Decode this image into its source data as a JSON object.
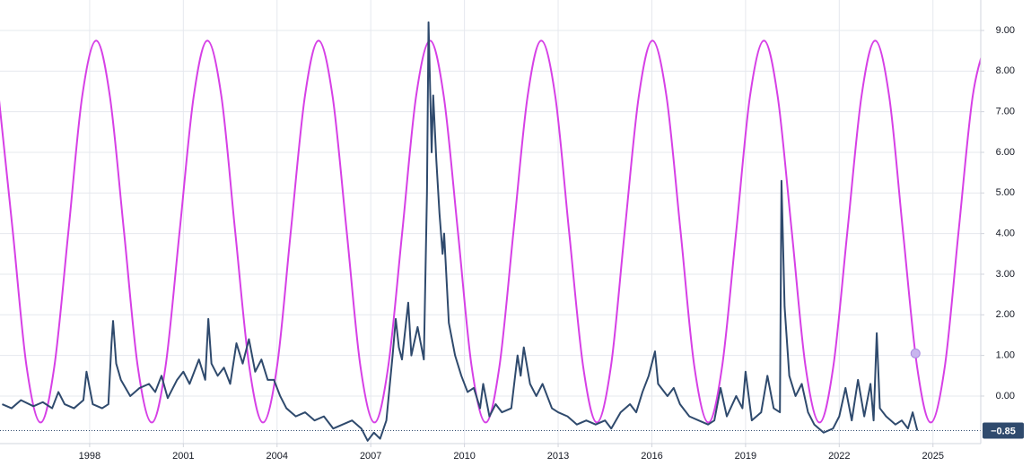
{
  "chart_data": {
    "type": "line",
    "xlim": [
      1995.13,
      2026.53
    ],
    "ylim": [
      -1.17,
      9.75
    ],
    "xticks": [
      1998,
      2001,
      2004,
      2007,
      2010,
      2013,
      2016,
      2019,
      2022,
      2025
    ],
    "yticks": [
      {
        "value": 0,
        "label": "0.00"
      },
      {
        "value": 1,
        "label": "1.00"
      },
      {
        "value": 2,
        "label": "2.00"
      },
      {
        "value": 3,
        "label": "3.00"
      },
      {
        "value": 4,
        "label": "4.00"
      },
      {
        "value": 5,
        "label": "5.00"
      },
      {
        "value": 6,
        "label": "6.00"
      },
      {
        "value": 7,
        "label": "7.00"
      },
      {
        "value": 8,
        "label": "8.00"
      },
      {
        "value": 9,
        "label": "9.00"
      }
    ],
    "grid": true,
    "series": [
      {
        "color": "#d640e6",
        "smooth": true,
        "x": [
          1995.09,
          1995.54,
          1995.98,
          1996.43,
          1996.87,
          1997.32,
          1997.76,
          1998.21,
          1998.65,
          1999.1,
          1999.54,
          1999.99,
          2000.43,
          2000.88,
          2001.33,
          2001.77,
          2002.22,
          2002.66,
          2003.11,
          2003.55,
          2004.0,
          2004.44,
          2004.89,
          2005.33,
          2005.78,
          2006.23,
          2006.67,
          2007.12,
          2007.56,
          2008.01,
          2008.45,
          2008.9,
          2009.34,
          2009.79,
          2010.23,
          2010.68,
          2011.12,
          2011.57,
          2012.02,
          2012.46,
          2012.91,
          2013.35,
          2013.8,
          2014.24,
          2014.69,
          2015.13,
          2015.58,
          2016.02,
          2016.47,
          2016.92,
          2017.36,
          2017.81,
          2018.25,
          2018.7,
          2019.14,
          2019.59,
          2020.03,
          2020.48,
          2020.92,
          2021.37,
          2021.81,
          2022.26,
          2022.71,
          2023.15,
          2023.6,
          2024.04,
          2024.49,
          2024.93,
          2025.38,
          2025.82,
          2026.27,
          2026.71
        ],
        "values": [
          7.37,
          4.05,
          0.73,
          -0.65,
          0.73,
          4.05,
          7.37,
          8.75,
          7.37,
          4.05,
          0.73,
          -0.65,
          0.73,
          4.05,
          7.37,
          8.75,
          7.37,
          4.05,
          0.73,
          -0.65,
          0.73,
          4.05,
          7.37,
          8.75,
          7.37,
          4.05,
          0.73,
          -0.65,
          0.73,
          4.05,
          7.37,
          8.75,
          7.37,
          4.05,
          0.73,
          -0.65,
          0.73,
          4.05,
          7.37,
          8.75,
          7.37,
          4.05,
          0.73,
          -0.65,
          0.73,
          4.05,
          7.37,
          8.75,
          7.37,
          4.05,
          0.73,
          -0.65,
          0.73,
          4.05,
          7.37,
          8.75,
          7.37,
          4.05,
          0.73,
          -0.65,
          0.73,
          4.05,
          7.37,
          8.75,
          7.37,
          4.05,
          0.73,
          -0.65,
          0.73,
          4.05,
          7.37,
          8.75
        ]
      },
      {
        "color": "#2f4a6d",
        "smooth": false,
        "x": [
          1995.2,
          1995.5,
          1995.8,
          1996.2,
          1996.5,
          1996.8,
          1997.0,
          1997.2,
          1997.5,
          1997.8,
          1997.9,
          1998.1,
          1998.4,
          1998.6,
          1998.7,
          1998.75,
          1998.85,
          1999.0,
          1999.3,
          1999.6,
          1999.9,
          2000.1,
          2000.3,
          2000.5,
          2000.8,
          2001.0,
          2001.2,
          2001.5,
          2001.7,
          2001.8,
          2001.9,
          2002.1,
          2002.3,
          2002.5,
          2002.7,
          2002.9,
          2003.1,
          2003.3,
          2003.5,
          2003.7,
          2003.9,
          2004.1,
          2004.3,
          2004.6,
          2004.9,
          2005.2,
          2005.5,
          2005.8,
          2006.1,
          2006.4,
          2006.7,
          2006.9,
          2007.1,
          2007.3,
          2007.5,
          2007.6,
          2007.7,
          2007.8,
          2007.9,
          2008.0,
          2008.2,
          2008.3,
          2008.5,
          2008.7,
          2008.8,
          2008.85,
          2008.95,
          2009.0,
          2009.1,
          2009.2,
          2009.3,
          2009.35,
          2009.5,
          2009.7,
          2009.9,
          2010.1,
          2010.3,
          2010.5,
          2010.6,
          2010.8,
          2011.0,
          2011.2,
          2011.5,
          2011.7,
          2011.8,
          2011.9,
          2012.1,
          2012.3,
          2012.5,
          2012.8,
          2013.0,
          2013.3,
          2013.6,
          2013.9,
          2014.2,
          2014.5,
          2014.7,
          2015.0,
          2015.3,
          2015.5,
          2015.7,
          2015.9,
          2016.1,
          2016.2,
          2016.5,
          2016.7,
          2016.9,
          2017.2,
          2017.5,
          2017.8,
          2018.0,
          2018.2,
          2018.4,
          2018.7,
          2018.9,
          2019.0,
          2019.2,
          2019.5,
          2019.7,
          2019.9,
          2020.1,
          2020.15,
          2020.25,
          2020.4,
          2020.6,
          2020.8,
          2021.0,
          2021.2,
          2021.5,
          2021.8,
          2022.0,
          2022.2,
          2022.4,
          2022.6,
          2022.8,
          2023.0,
          2023.1,
          2023.2,
          2023.3,
          2023.5,
          2023.8,
          2024.0,
          2024.2,
          2024.35,
          2024.5
        ],
        "values": [
          -0.2,
          -0.3,
          -0.1,
          -0.25,
          -0.15,
          -0.3,
          0.1,
          -0.2,
          -0.3,
          -0.1,
          0.6,
          -0.2,
          -0.3,
          -0.2,
          1.3,
          1.85,
          0.8,
          0.4,
          0.0,
          0.2,
          0.3,
          0.1,
          0.5,
          -0.05,
          0.4,
          0.6,
          0.3,
          0.9,
          0.4,
          1.9,
          0.8,
          0.5,
          0.7,
          0.3,
          1.3,
          0.8,
          1.4,
          0.6,
          0.9,
          0.4,
          0.4,
          0.0,
          -0.3,
          -0.5,
          -0.4,
          -0.6,
          -0.5,
          -0.8,
          -0.7,
          -0.6,
          -0.8,
          -1.1,
          -0.9,
          -1.05,
          -0.6,
          0.2,
          1.0,
          1.9,
          1.2,
          0.9,
          2.3,
          1.0,
          1.7,
          0.9,
          5.0,
          9.2,
          6.0,
          7.4,
          5.8,
          4.5,
          3.5,
          4.0,
          1.8,
          1.0,
          0.5,
          0.1,
          0.2,
          -0.3,
          0.3,
          -0.5,
          -0.2,
          -0.4,
          -0.3,
          1.0,
          0.5,
          1.2,
          0.3,
          0.0,
          0.3,
          -0.3,
          -0.4,
          -0.5,
          -0.7,
          -0.6,
          -0.7,
          -0.6,
          -0.8,
          -0.4,
          -0.2,
          -0.4,
          0.1,
          0.5,
          1.1,
          0.3,
          0.0,
          0.2,
          -0.2,
          -0.5,
          -0.6,
          -0.7,
          -0.6,
          0.2,
          -0.5,
          0.0,
          -0.3,
          0.6,
          -0.6,
          -0.4,
          0.5,
          -0.3,
          -0.4,
          5.3,
          2.2,
          0.5,
          0.0,
          0.3,
          -0.4,
          -0.7,
          -0.9,
          -0.8,
          -0.5,
          0.2,
          -0.6,
          0.4,
          -0.5,
          0.3,
          -0.6,
          1.55,
          -0.3,
          -0.5,
          -0.7,
          -0.6,
          -0.8,
          -0.4,
          -0.85
        ]
      }
    ],
    "marker": {
      "x": 2024.44,
      "y": 1.05,
      "color": "#c8b5ee"
    },
    "last_value": {
      "value": -0.85,
      "label": "−0.85",
      "color": "#2f4a6d"
    }
  }
}
